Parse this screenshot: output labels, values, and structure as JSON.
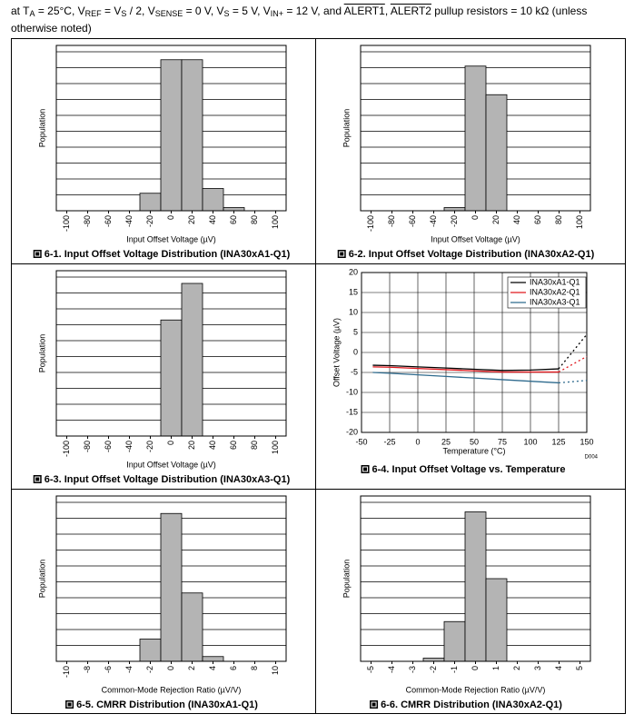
{
  "header": [
    "at T",
    "A",
    " = 25°C, V",
    "REF",
    " = V",
    "S",
    " / 2, V",
    "SENSE",
    " = 0 V, V",
    "S",
    " = 5 V, V",
    "IN+",
    " = 12 V, and ",
    "ALERT1",
    ", ",
    "ALERT2",
    " pullup resistors = 10 kΩ  (unless otherwise noted)"
  ],
  "chart_data": [
    {
      "type": "histogram",
      "caption": "6-1. Input Offset Voltage Distribution (INA30xA1-Q1)",
      "x_label": "Input Offset Voltage (µV)",
      "y_label": "Population",
      "color": "#b4b4b4",
      "bins": [
        -30,
        -10,
        10,
        30,
        50,
        70
      ],
      "values": [
        1.1,
        9.5,
        9.5,
        1.4,
        0.2
      ],
      "xlim": [
        -110,
        110
      ],
      "ylim": [
        0,
        10
      ],
      "xticks": [
        -100,
        -80,
        -60,
        -40,
        -20,
        0,
        20,
        40,
        60,
        80,
        100
      ]
    },
    {
      "type": "histogram",
      "caption": "6-2. Input Offset Voltage Distribution (INA30xA2-Q1)",
      "x_label": "Input Offset Voltage (µV)",
      "y_label": "Population",
      "color": "#b4b4b4",
      "bins": [
        -30,
        -10,
        10,
        30
      ],
      "values": [
        0.2,
        9.1,
        7.3
      ],
      "xlim": [
        -110,
        110
      ],
      "ylim": [
        0,
        10
      ],
      "xticks": [
        -100,
        -80,
        -60,
        -40,
        -20,
        0,
        20,
        40,
        60,
        80,
        100
      ]
    },
    {
      "type": "histogram",
      "caption": "6-3. Input Offset Voltage Distribution (INA30xA3-Q1)",
      "x_label": "Input Offset Voltage (µV)",
      "y_label": "Population",
      "color": "#b4b4b4",
      "bins": [
        -10,
        10,
        30
      ],
      "values": [
        7.3,
        9.6
      ],
      "xlim": [
        -110,
        110
      ],
      "ylim": [
        0,
        10
      ],
      "xticks": [
        -100,
        -80,
        -60,
        -40,
        -20,
        0,
        20,
        40,
        60,
        80,
        100
      ]
    },
    {
      "type": "line",
      "caption": "6-4. Input Offset Voltage vs. Temperature",
      "x_label": "Temperature (°C)",
      "y_label": "Offset Voltage (µV)",
      "note": "D004",
      "x": [
        -40,
        -25,
        0,
        25,
        50,
        75,
        100,
        125,
        150
      ],
      "series": [
        {
          "name": "INA30xA1-Q1",
          "color": "#000000",
          "values": [
            -3.2,
            -3.3,
            -3.6,
            -3.9,
            -4.2,
            -4.5,
            -4.4,
            -4.1,
            null
          ],
          "extrapolated_values": [
            null,
            null,
            null,
            null,
            null,
            null,
            null,
            -4.1,
            4.5
          ]
        },
        {
          "name": "INA30xA2-Q1",
          "color": "#e0191e",
          "values": [
            -3.6,
            -3.7,
            -4.0,
            -4.3,
            -4.6,
            -4.9,
            -4.9,
            -4.9,
            null
          ],
          "extrapolated_values": [
            null,
            null,
            null,
            null,
            null,
            null,
            null,
            -4.9,
            -1.0
          ]
        },
        {
          "name": "INA30xA3-Q1",
          "color": "#2f6b8e",
          "values": [
            -5.0,
            -5.2,
            -5.6,
            -6.0,
            -6.4,
            -6.8,
            -7.2,
            -7.6,
            null
          ],
          "extrapolated_values": [
            null,
            null,
            null,
            null,
            null,
            null,
            null,
            -7.6,
            -7.0
          ]
        }
      ],
      "xlim": [
        -50,
        150
      ],
      "ylim": [
        -20,
        20
      ],
      "xticks": [
        -50,
        -25,
        0,
        25,
        50,
        75,
        100,
        125,
        150
      ],
      "yticks": [
        -20,
        -15,
        -10,
        -5,
        0,
        5,
        10,
        15,
        20
      ],
      "grid": true,
      "legend": "upper right"
    },
    {
      "type": "histogram",
      "caption": "6-5. CMRR Distribution (INA30xA1-Q1)",
      "x_label": "Common-Mode Rejection Ratio (µV/V)",
      "y_label": "Population",
      "color": "#b4b4b4",
      "bins": [
        -3,
        -1,
        1,
        3,
        5
      ],
      "values": [
        1.4,
        9.3,
        4.3,
        0.3
      ],
      "xlim": [
        -11,
        11
      ],
      "ylim": [
        0,
        10
      ],
      "xticks": [
        -10,
        -8,
        -6,
        -4,
        -2,
        0,
        2,
        4,
        6,
        8,
        10
      ]
    },
    {
      "type": "histogram",
      "caption": "6-6. CMRR Distribution (INA30xA2-Q1)",
      "x_label": "Common-Mode Rejection Ratio (µV/V)",
      "y_label": "Population",
      "color": "#b4b4b4",
      "bins": [
        -2.5,
        -1.5,
        -0.5,
        0.5,
        1.5
      ],
      "values": [
        0.2,
        2.5,
        9.4,
        5.2
      ],
      "xlim": [
        -5.5,
        5.5
      ],
      "ylim": [
        0,
        10
      ],
      "xticks": [
        -5,
        -4,
        -3,
        -2,
        -1,
        0,
        1,
        2,
        3,
        4,
        5
      ]
    }
  ]
}
